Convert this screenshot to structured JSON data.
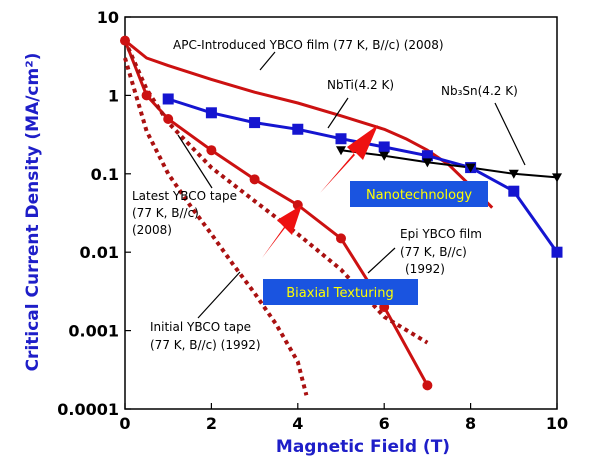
{
  "chart_data": {
    "type": "line",
    "xlabel": "Magnetic Field (T)",
    "ylabel": "Critical Current Density (MA/cm²)",
    "xlim": [
      0,
      10
    ],
    "ylim": [
      0.0001,
      10
    ],
    "yscale": "log",
    "grid": false,
    "x_ticks": [
      "0",
      "2",
      "4",
      "6",
      "8",
      "10"
    ],
    "y_ticks": [
      "10",
      "1",
      "0.1",
      "0.01",
      "0.001",
      "0.0001"
    ],
    "series": [
      {
        "label": "APC-Introduced YBCO film (77 K, B//c) (2008)",
        "color": "#cc1111",
        "style": "solid",
        "marker": "none",
        "x": [
          0,
          0.5,
          1,
          2,
          3,
          4,
          5,
          5.5,
          6,
          6.5,
          7,
          7.5,
          8.0,
          8.5
        ],
        "y": [
          5,
          3.0,
          2.4,
          1.6,
          1.1,
          0.8,
          0.55,
          0.45,
          0.37,
          0.28,
          0.2,
          0.13,
          0.07,
          0.037
        ]
      },
      {
        "label": "NbTi(4.2 K)",
        "color": "#1515d0",
        "style": "solid",
        "marker": "square",
        "x": [
          1,
          2,
          3,
          4,
          5,
          6,
          7,
          8,
          9,
          10
        ],
        "y": [
          0.9,
          0.6,
          0.45,
          0.37,
          0.28,
          0.22,
          0.17,
          0.12,
          0.06,
          0.01
        ]
      },
      {
        "label": "Nb3Sn(4.2 K)",
        "color": "#000000",
        "style": "solid",
        "marker": "triangle-down",
        "x": [
          5,
          6,
          7,
          8,
          9,
          10
        ],
        "y": [
          0.2,
          0.17,
          0.14,
          0.12,
          0.1,
          0.09
        ]
      },
      {
        "label": "Latest YBCO tape (77 K, B//c) (2008)",
        "color": "#cc1111",
        "style": "solid",
        "marker": "circle",
        "x": [
          0,
          0.5,
          1,
          2,
          3,
          4,
          5,
          6,
          7
        ],
        "y": [
          5,
          1.0,
          0.5,
          0.2,
          0.085,
          0.04,
          0.015,
          0.002,
          0.0002
        ]
      },
      {
        "label": "Epi YBCO film (77 K, B//c) (1992)",
        "color": "#aa1111",
        "style": "dotted",
        "marker": "none",
        "x": [
          0,
          0.5,
          1,
          2,
          3,
          4,
          5,
          6,
          7
        ],
        "y": [
          5,
          1.2,
          0.45,
          0.12,
          0.045,
          0.017,
          0.006,
          0.0015,
          0.0007
        ]
      },
      {
        "label": "Initial YBCO tape (77 K, B//c) (1992)",
        "color": "#aa1111",
        "style": "dotted",
        "marker": "none",
        "x": [
          0,
          0.5,
          1,
          1.5,
          2,
          2.5,
          3,
          3.5,
          4.0,
          4.2
        ],
        "y": [
          3.0,
          0.35,
          0.1,
          0.04,
          0.017,
          0.007,
          0.003,
          0.0012,
          0.0004,
          0.00015
        ]
      }
    ],
    "annotations": {
      "apc": "APC-Introduced YBCO  film (77 K, B//c) (2008)",
      "nbti": "NbTi(4.2 K)",
      "nb3sn": "Nb₃Sn(4.2 K)",
      "latest1": "Latest YBCO tape",
      "latest2": "(77 K, B//c)",
      "latest3": "(2008)",
      "epi1": "Epi YBCO film",
      "epi2": "(77 K, B//c)",
      "epi3": "(1992)",
      "initial1": "Initial YBCO tape",
      "initial2": "(77 K, B//c) (1992)",
      "nanotech": "Nanotechnology",
      "biaxial": "Biaxial Texturing"
    },
    "colors": {
      "box_fill": "#1a54e0",
      "box_text": "#ffff00",
      "axis_title": "#1e1ec8"
    }
  }
}
